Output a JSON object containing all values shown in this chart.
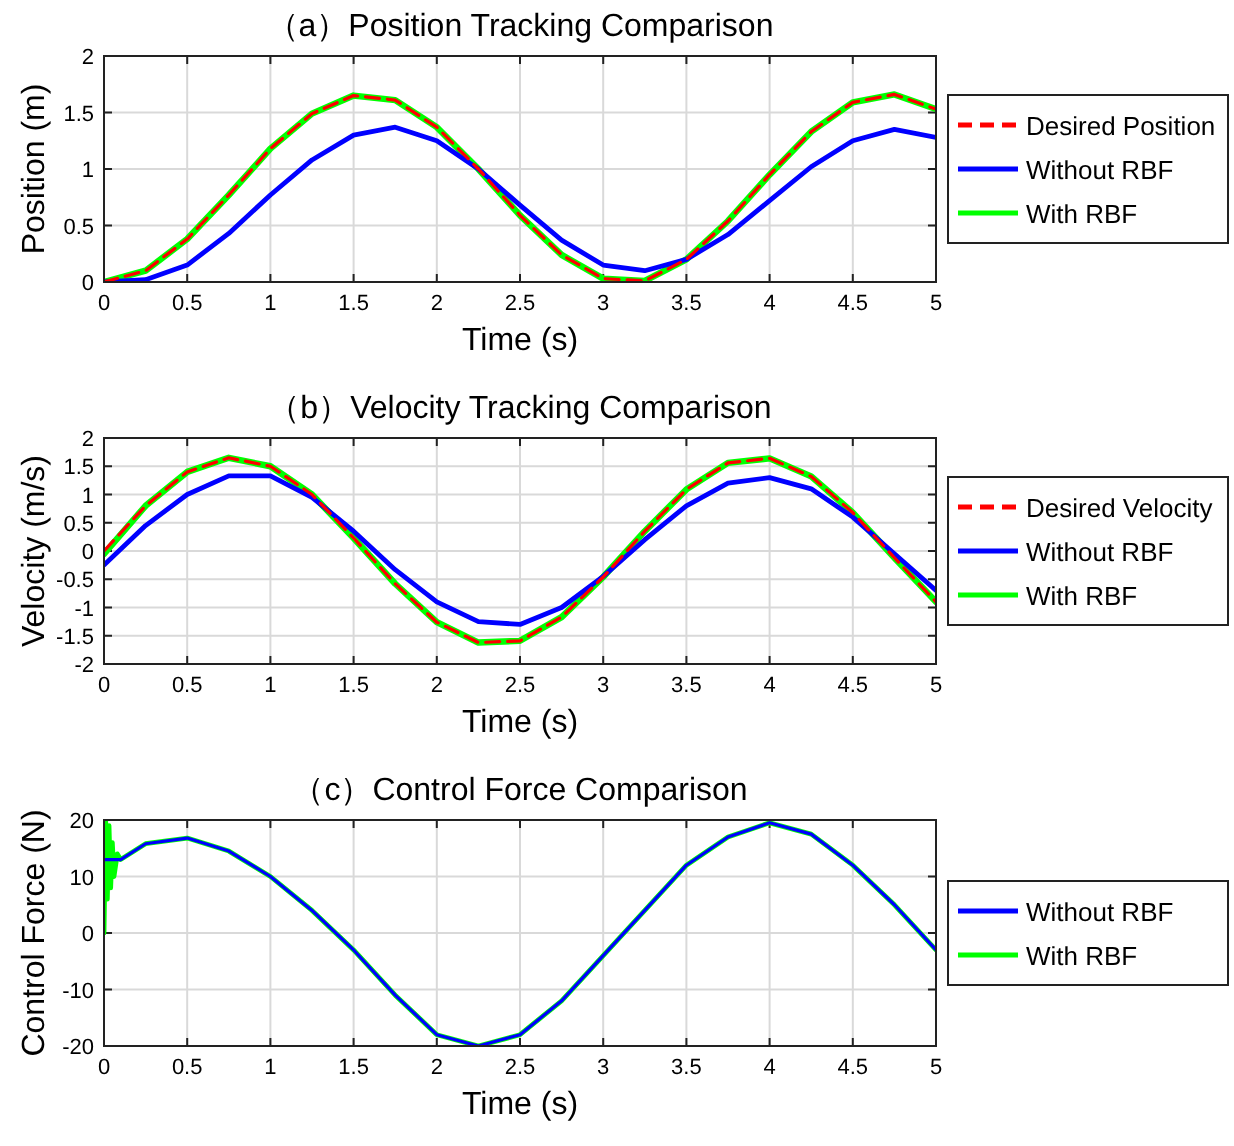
{
  "chart_data": [
    {
      "type": "line",
      "title": "（a）Position Tracking Comparison",
      "xlabel": "Time (s)",
      "ylabel": "Position (m)",
      "xlim": [
        0,
        5
      ],
      "xticks": [
        0,
        0.5,
        1,
        1.5,
        2,
        2.5,
        3,
        3.5,
        4,
        4.5,
        5
      ],
      "ylim": [
        0,
        2
      ],
      "yticks": [
        0,
        0.5,
        1,
        1.5,
        2
      ],
      "grid": true,
      "legend": "right",
      "series": [
        {
          "name": "Desired Position",
          "color": "#ff0000",
          "line_style": "dashed",
          "x": [
            0,
            0.25,
            0.5,
            0.75,
            1,
            1.25,
            1.5,
            1.75,
            2,
            2.25,
            2.5,
            2.75,
            3,
            3.25,
            3.5,
            3.75,
            4,
            4.25,
            4.5,
            4.75,
            5
          ],
          "values": [
            0,
            0.1,
            0.38,
            0.77,
            1.18,
            1.49,
            1.65,
            1.61,
            1.37,
            1.0,
            0.59,
            0.24,
            0.03,
            0.01,
            0.2,
            0.54,
            0.95,
            1.33,
            1.59,
            1.66,
            1.53
          ]
        },
        {
          "name": "Without RBF",
          "color": "#0000ff",
          "line_style": "solid",
          "x": [
            0,
            0.25,
            0.5,
            0.75,
            1,
            1.25,
            1.5,
            1.75,
            2,
            2.25,
            2.5,
            2.75,
            3,
            3.25,
            3.5,
            3.75,
            4,
            4.25,
            4.5,
            4.75,
            5
          ],
          "values": [
            0,
            0.02,
            0.15,
            0.43,
            0.77,
            1.08,
            1.3,
            1.37,
            1.25,
            1.0,
            0.68,
            0.37,
            0.15,
            0.1,
            0.2,
            0.42,
            0.72,
            1.02,
            1.25,
            1.35,
            1.28
          ]
        },
        {
          "name": "With RBF",
          "color": "#00ff00",
          "line_style": "solid",
          "x": [
            0,
            0.25,
            0.5,
            0.75,
            1,
            1.25,
            1.5,
            1.75,
            2,
            2.25,
            2.5,
            2.75,
            3,
            3.25,
            3.5,
            3.75,
            4,
            4.25,
            4.5,
            4.75,
            5
          ],
          "values": [
            0,
            0.1,
            0.38,
            0.77,
            1.18,
            1.49,
            1.65,
            1.61,
            1.37,
            1.0,
            0.59,
            0.24,
            0.03,
            0.01,
            0.2,
            0.54,
            0.95,
            1.33,
            1.59,
            1.66,
            1.53
          ]
        }
      ]
    },
    {
      "type": "line",
      "title": "（b）Velocity Tracking Comparison",
      "xlabel": "Time (s)",
      "ylabel": "Velocity (m/s)",
      "xlim": [
        0,
        5
      ],
      "xticks": [
        0,
        0.5,
        1,
        1.5,
        2,
        2.5,
        3,
        3.5,
        4,
        4.5,
        5
      ],
      "ylim": [
        -2,
        2
      ],
      "yticks": [
        -2,
        -1.5,
        -1,
        -0.5,
        0,
        0.5,
        1,
        1.5,
        2
      ],
      "grid": true,
      "legend": "right",
      "series": [
        {
          "name": "Desired Velocity",
          "color": "#ff0000",
          "line_style": "dashed",
          "x": [
            0,
            0.25,
            0.5,
            0.75,
            1,
            1.25,
            1.5,
            1.75,
            2,
            2.25,
            2.5,
            2.75,
            3,
            3.25,
            3.5,
            3.75,
            4,
            4.25,
            4.5,
            4.75,
            5
          ],
          "values": [
            0,
            0.8,
            1.4,
            1.65,
            1.5,
            1.0,
            0.23,
            -0.58,
            -1.26,
            -1.62,
            -1.59,
            -1.17,
            -0.46,
            0.35,
            1.09,
            1.56,
            1.64,
            1.32,
            0.68,
            -0.12,
            -0.9
          ]
        },
        {
          "name": "Without RBF",
          "color": "#0000ff",
          "line_style": "solid",
          "x": [
            0,
            0.25,
            0.5,
            0.75,
            1,
            1.25,
            1.5,
            1.75,
            2,
            2.25,
            2.5,
            2.75,
            3,
            3.25,
            3.5,
            3.75,
            4,
            4.25,
            4.5,
            4.75,
            5
          ],
          "values": [
            -0.25,
            0.45,
            1.0,
            1.33,
            1.33,
            0.95,
            0.35,
            -0.33,
            -0.9,
            -1.25,
            -1.3,
            -1.0,
            -0.45,
            0.2,
            0.8,
            1.2,
            1.3,
            1.1,
            0.6,
            -0.05,
            -0.7
          ]
        },
        {
          "name": "With RBF",
          "color": "#00ff00",
          "line_style": "solid",
          "x": [
            0,
            0.25,
            0.5,
            0.75,
            1,
            1.25,
            1.5,
            1.75,
            2,
            2.25,
            2.5,
            2.75,
            3,
            3.25,
            3.5,
            3.75,
            4,
            4.25,
            4.5,
            4.75,
            5
          ],
          "values": [
            -0.05,
            0.8,
            1.4,
            1.65,
            1.5,
            1.0,
            0.23,
            -0.58,
            -1.26,
            -1.62,
            -1.59,
            -1.17,
            -0.46,
            0.35,
            1.09,
            1.56,
            1.64,
            1.32,
            0.68,
            -0.12,
            -0.9
          ]
        }
      ]
    },
    {
      "type": "line",
      "title": "（c）Control Force Comparison",
      "xlabel": "Time (s)",
      "ylabel": "Control Force (N)",
      "xlim": [
        0,
        5
      ],
      "xticks": [
        0,
        0.5,
        1,
        1.5,
        2,
        2.5,
        3,
        3.5,
        4,
        4.5,
        5
      ],
      "ylim": [
        -20,
        20
      ],
      "yticks": [
        -20,
        -10,
        0,
        10,
        20
      ],
      "grid": true,
      "legend": "right",
      "series": [
        {
          "name": "Without RBF",
          "color": "#0000ff",
          "line_style": "solid",
          "x": [
            0,
            0.1,
            0.25,
            0.5,
            0.75,
            1,
            1.25,
            1.5,
            1.75,
            2,
            2.25,
            2.5,
            2.75,
            3,
            3.25,
            3.5,
            3.75,
            4,
            4.25,
            4.5,
            4.75,
            5
          ],
          "values": [
            13,
            13,
            15.8,
            16.8,
            14.5,
            10,
            4,
            -3,
            -11,
            -18,
            -20,
            -18,
            -12,
            -4,
            4,
            12,
            17,
            19.5,
            17.5,
            12,
            5,
            -3
          ]
        },
        {
          "name": "With RBF",
          "color": "#00ff00",
          "line_style": "solid",
          "x": [
            0,
            0.01,
            0.02,
            0.03,
            0.04,
            0.05,
            0.06,
            0.08,
            0.1,
            0.25,
            0.5,
            0.75,
            1,
            1.25,
            1.5,
            1.75,
            2,
            2.25,
            2.5,
            2.75,
            3,
            3.25,
            3.5,
            3.75,
            4,
            4.25,
            4.5,
            4.75,
            5
          ],
          "values": [
            0,
            20,
            6,
            19,
            8,
            16,
            10,
            14,
            13,
            15.8,
            16.8,
            14.5,
            10,
            4,
            -3,
            -11,
            -18,
            -20,
            -18,
            -12,
            -4,
            4,
            12,
            17,
            19.5,
            17.5,
            12,
            5,
            -3
          ]
        }
      ]
    }
  ]
}
